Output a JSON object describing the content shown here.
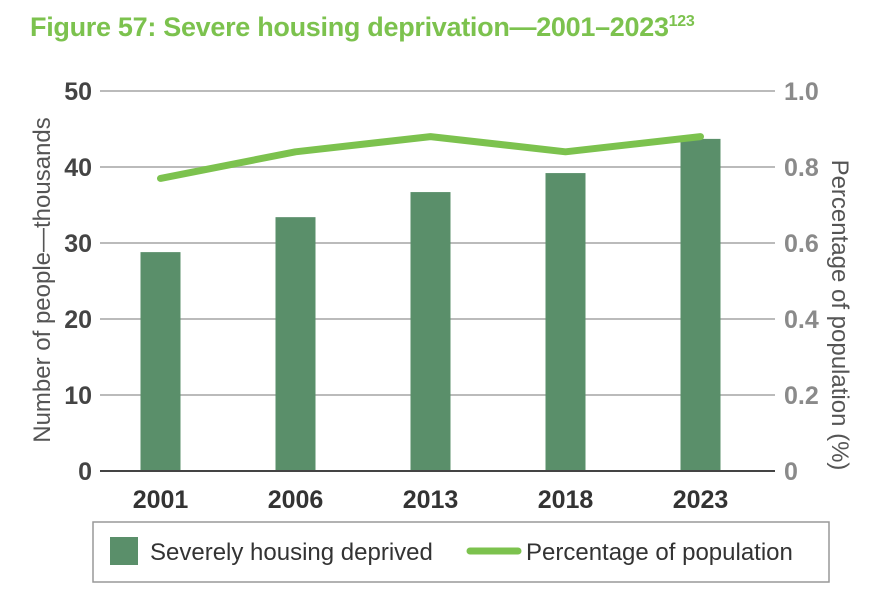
{
  "title": "Figure 57: Severe housing deprivation—2001–2023",
  "title_superscript": "123",
  "chart_data": {
    "type": "bar+line",
    "categories": [
      "2001",
      "2006",
      "2013",
      "2018",
      "2023"
    ],
    "series": [
      {
        "name": "Severely housing deprived",
        "type": "bar",
        "axis": "left",
        "color": "#5a8f6a",
        "values": [
          28.8,
          33.4,
          36.7,
          39.2,
          43.7
        ]
      },
      {
        "name": "Percentage of population",
        "type": "line",
        "axis": "right",
        "color": "#7cc24e",
        "values": [
          0.77,
          0.84,
          0.88,
          0.84,
          0.88
        ]
      }
    ],
    "ylabel": "Number of people—thousands",
    "y2label": "Percentage of population (%)",
    "ylim": [
      0,
      50
    ],
    "y2lim": [
      0,
      1.0
    ],
    "yticks": [
      "0",
      "10",
      "20",
      "30",
      "40",
      "50"
    ],
    "y2ticks": [
      "0",
      "0.2",
      "0.4",
      "0.6",
      "0.8",
      "1.0"
    ],
    "grid": true,
    "legend": "bottom"
  }
}
